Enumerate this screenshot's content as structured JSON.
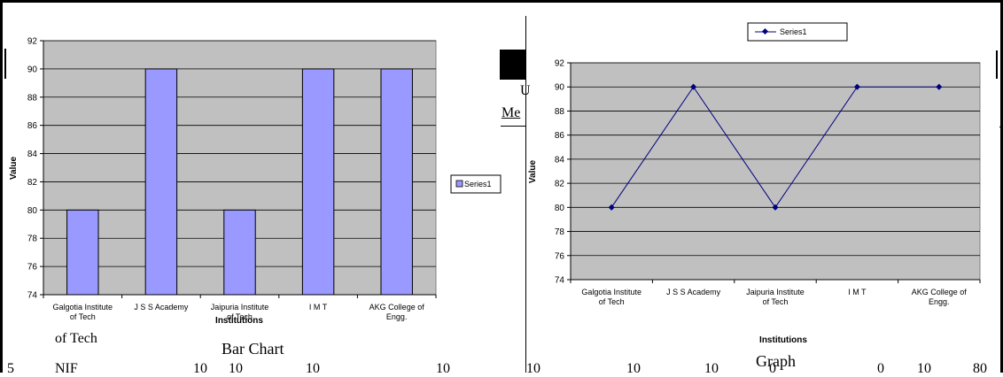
{
  "bar_chart": {
    "ylabel": "Value",
    "xlabel": "Institutions",
    "legend": "Series1",
    "caption": "Bar Chart"
  },
  "line_chart": {
    "ylabel": "Value",
    "xlabel": "Institutions",
    "legend": "Series1",
    "caption": "Graph"
  },
  "background_text": {
    "u": "U",
    "me": "Me",
    "of_tech": "of Tech",
    "row_number": "5",
    "row_label": "NIF",
    "row_values": [
      "10",
      "10",
      "10",
      "10",
      "10",
      "10",
      "10",
      "0",
      "0",
      "10",
      "80"
    ]
  },
  "colors": {
    "bar": "#9999ff",
    "line": "#000080",
    "plot_bg": "#c0c0c0"
  },
  "chart_data": [
    {
      "type": "bar",
      "categories": [
        "Galgotia Institute of Tech",
        "J S S Academy",
        "Jaipuria Institute of Tech",
        "I M T",
        "AKG College of Engg."
      ],
      "series": [
        {
          "name": "Series1",
          "values": [
            80,
            90,
            80,
            90,
            90
          ]
        }
      ],
      "xlabel": "Institutions",
      "ylabel": "Value",
      "ylim": [
        74,
        92
      ],
      "yticks": [
        74,
        76,
        78,
        80,
        82,
        84,
        86,
        88,
        90,
        92
      ],
      "grid": true,
      "legend": "right"
    },
    {
      "type": "line",
      "categories": [
        "Galgotia Institute of Tech",
        "J S S Academy",
        "Jaipuria Institute of Tech",
        "I M T",
        "AKG College of Engg."
      ],
      "series": [
        {
          "name": "Series1",
          "values": [
            80,
            90,
            80,
            90,
            90
          ]
        }
      ],
      "xlabel": "Institutions",
      "ylabel": "Value",
      "ylim": [
        74,
        92
      ],
      "yticks": [
        74,
        76,
        78,
        80,
        82,
        84,
        86,
        88,
        90,
        92
      ],
      "grid": true,
      "legend": "top"
    }
  ]
}
